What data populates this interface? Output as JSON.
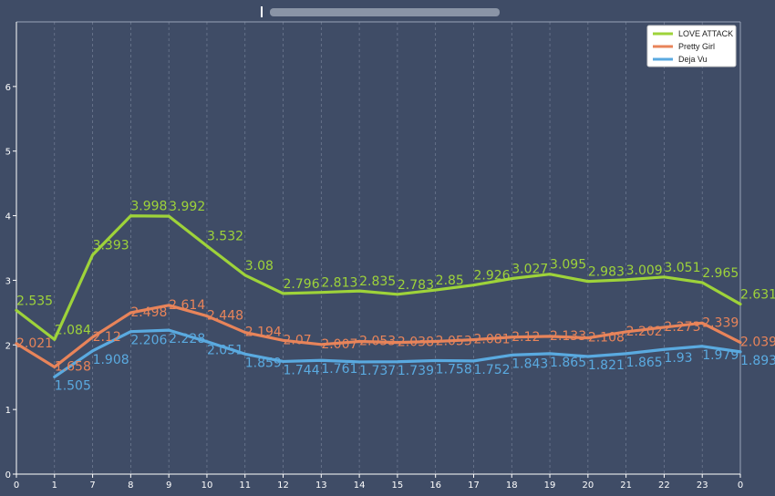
{
  "chart_data": {
    "type": "line",
    "title": "",
    "xlabel": "",
    "ylabel": "",
    "categories": [
      "0",
      "1",
      "7",
      "8",
      "9",
      "10",
      "11",
      "12",
      "13",
      "14",
      "15",
      "16",
      "17",
      "18",
      "19",
      "20",
      "21",
      "22",
      "23",
      "0"
    ],
    "ylim": [
      0,
      7
    ],
    "yticks": [
      0,
      1,
      2,
      3,
      4,
      5,
      6
    ],
    "grid": {
      "x": true,
      "y": false
    },
    "legend_position": "top-right",
    "series": [
      {
        "name": "LOVE ATTACK",
        "color": "#9ed33a",
        "values": [
          2.535,
          2.084,
          3.393,
          3.998,
          3.992,
          3.532,
          3.08,
          2.796,
          2.813,
          2.835,
          2.783,
          2.85,
          2.926,
          3.027,
          3.095,
          2.983,
          3.009,
          3.051,
          2.965,
          2.631
        ]
      },
      {
        "name": "Pretty Girl",
        "color": "#e8845a",
        "values": [
          2.021,
          1.658,
          2.12,
          2.498,
          2.614,
          2.448,
          2.194,
          2.07,
          2.007,
          2.053,
          2.038,
          2.053,
          2.081,
          2.12,
          2.133,
          2.108,
          2.202,
          2.273,
          2.339,
          2.039
        ]
      },
      {
        "name": "Deja Vu",
        "color": "#5aaae0",
        "values": [
          null,
          1.505,
          1.908,
          2.206,
          2.228,
          2.051,
          1.859,
          1.744,
          1.761,
          1.737,
          1.739,
          1.758,
          1.752,
          1.843,
          1.865,
          1.821,
          1.865,
          1.93,
          1.979,
          1.893
        ]
      }
    ]
  }
}
